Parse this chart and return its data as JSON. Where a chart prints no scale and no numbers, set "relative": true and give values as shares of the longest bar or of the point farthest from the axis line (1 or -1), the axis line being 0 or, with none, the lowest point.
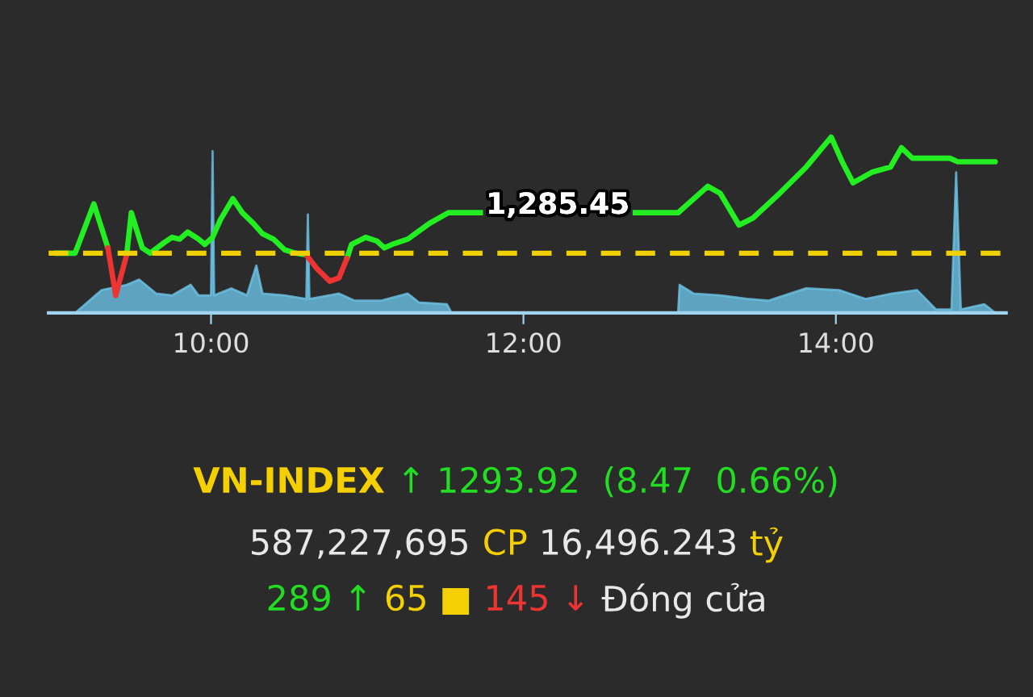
{
  "chart_data": [
    {
      "type": "line",
      "relative": true,
      "tick_labels": "x",
      "xlim": [
        8.96,
        15.09
      ],
      "xticks": [
        {
          "value": 10,
          "label": "10:00"
        },
        {
          "value": 12,
          "label": "12:00"
        },
        {
          "value": 14,
          "label": "14:00"
        }
      ],
      "series": [
        {
          "type": "area",
          "color": "#6cc3e6",
          "x": [
            9.13,
            9.3,
            9.46,
            9.54,
            9.65,
            9.75,
            9.87,
            9.92,
            10.0,
            10.01,
            10.02,
            10.13,
            10.23,
            10.29,
            10.33,
            10.47,
            10.61,
            10.62,
            10.63,
            10.82,
            10.92,
            11.09,
            11.26,
            11.33,
            11.51,
            11.54,
            12.99,
            13.0,
            13.09,
            13.26,
            13.43,
            13.57,
            13.81,
            14.02,
            14.19,
            14.36,
            14.52,
            14.64,
            14.74,
            14.77,
            14.8,
            14.95,
            15.02
          ],
          "values": [
            0,
            0.13,
            0.16,
            0.19,
            0.11,
            0.1,
            0.16,
            0.1,
            0.1,
            0.92,
            0.1,
            0.14,
            0.1,
            0.27,
            0.11,
            0.1,
            0.08,
            0.56,
            0.08,
            0.11,
            0.07,
            0.07,
            0.11,
            0.06,
            0.05,
            0,
            0,
            0.16,
            0.11,
            0.1,
            0.08,
            0.07,
            0.14,
            0.13,
            0.08,
            0.11,
            0.13,
            0.02,
            0.02,
            0.8,
            0.02,
            0.05,
            0
          ]
        },
        {
          "type": "line",
          "color": "#22ee22",
          "x": [
            9.0,
            9.13,
            9.25,
            9.34,
            9.39,
            9.46,
            9.49,
            9.56,
            9.61,
            9.7,
            9.75,
            9.8,
            9.85,
            9.92,
            9.96,
            10.01,
            10.06,
            10.14,
            10.2,
            10.27,
            10.33,
            10.4,
            10.47,
            10.54,
            10.61,
            10.76,
            10.87,
            10.9,
            10.99,
            11.06,
            11.11,
            11.16,
            11.26,
            11.4,
            11.52,
            12.99,
            13.18,
            13.26,
            13.38,
            13.47,
            13.64,
            13.81,
            13.97,
            14.04,
            14.11,
            14.23,
            14.35,
            14.42,
            14.49,
            14.73,
            14.78,
            15.02
          ],
          "values": [
            0.34,
            0.34,
            0.62,
            0.37,
            null,
            0.33,
            0.57,
            0.37,
            0.34,
            0.4,
            0.43,
            0.42,
            0.46,
            0.42,
            0.39,
            0.43,
            0.53,
            0.65,
            0.57,
            0.51,
            0.45,
            0.42,
            0.36,
            0.34,
            0.33,
            null,
            0.31,
            0.39,
            0.43,
            0.41,
            0.37,
            0.39,
            0.42,
            0.51,
            0.57,
            0.57,
            0.72,
            0.68,
            0.5,
            0.54,
            0.68,
            0.83,
            1.0,
            0.86,
            0.74,
            0.8,
            0.83,
            0.94,
            0.88,
            0.88,
            0.86,
            0.86
          ]
        },
        {
          "type": "line",
          "color": "#ee3333",
          "x": [
            9.34,
            9.39,
            9.46,
            10.0,
            10.61,
            10.68,
            10.76,
            10.82,
            10.87
          ],
          "values": [
            0.37,
            0.1,
            0.33,
            null,
            0.33,
            0.25,
            0.18,
            0.2,
            0.31
          ]
        }
      ],
      "ref_lines": [
        {
          "axis": "y",
          "value": 0.34,
          "color": "#f0d000",
          "line_style": "dashed"
        }
      ],
      "annotations": [
        {
          "text": "1,285.45",
          "x": 12.22,
          "y": 0.61
        }
      ]
    },
    {
      "type": "other",
      "annotations": [
        "VN-INDEX",
        "↑ 1293.92  (8.47  0.66%)",
        "587,227,695",
        "CP",
        "16,496.243",
        "tỷ",
        "289 ↑",
        "65 ■",
        "145 ↓",
        "Đóng cửa"
      ]
    }
  ]
}
